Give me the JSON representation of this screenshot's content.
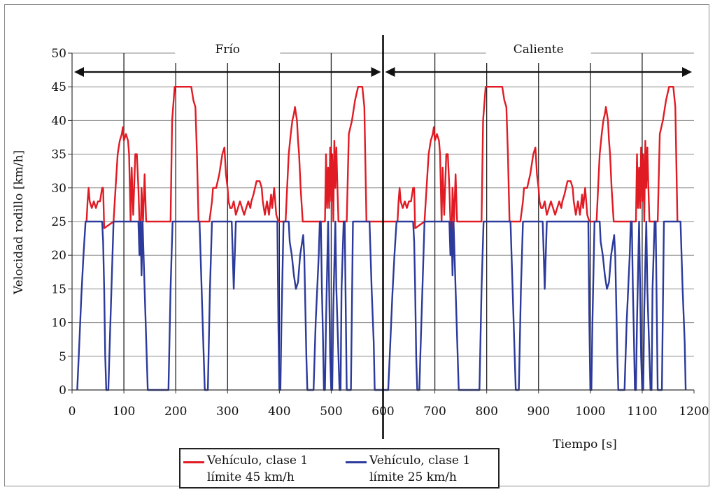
{
  "chart_data": {
    "type": "line",
    "ylabel": "Velocidad rodillo [km/h]",
    "xlabel": "Tiempo [s]",
    "xlim": [
      0,
      1200
    ],
    "ylim": [
      0,
      50
    ],
    "xticks": [
      "0",
      "100",
      "200",
      "300",
      "400",
      "500",
      "600",
      "700",
      "800",
      "900",
      "1000",
      "1100",
      "1200"
    ],
    "yticks": [
      "0",
      "5",
      "10",
      "15",
      "20",
      "25",
      "30",
      "35",
      "40",
      "45",
      "50"
    ],
    "grid": true,
    "phases": [
      {
        "label": "Frío",
        "range": [
          0,
          600
        ]
      },
      {
        "label": "Caliente",
        "range": [
          600,
          1200
        ]
      }
    ],
    "divider_x": 600,
    "legend_position": "bottom",
    "series": [
      {
        "name": "Vehículo, clase 1 límite 45 km/h",
        "name_lines": [
          "Vehículo, clase 1",
          "límite 45 km/h"
        ],
        "color": "#e01b24",
        "points": [
          [
            28,
            25
          ],
          [
            30,
            28
          ],
          [
            32,
            30
          ],
          [
            34,
            28
          ],
          [
            38,
            27
          ],
          [
            42,
            28
          ],
          [
            46,
            27
          ],
          [
            50,
            28
          ],
          [
            54,
            28
          ],
          [
            58,
            30
          ],
          [
            60,
            30
          ],
          [
            62,
            24
          ],
          [
            80,
            25
          ],
          [
            84,
            30
          ],
          [
            88,
            35
          ],
          [
            92,
            37
          ],
          [
            96,
            38
          ],
          [
            98,
            39
          ],
          [
            100,
            37
          ],
          [
            104,
            38
          ],
          [
            108,
            37
          ],
          [
            110,
            35
          ],
          [
            113,
            25
          ],
          [
            115,
            33
          ],
          [
            118,
            26
          ],
          [
            122,
            35
          ],
          [
            125,
            35
          ],
          [
            128,
            30
          ],
          [
            130,
            25
          ],
          [
            132,
            20
          ],
          [
            134,
            30
          ],
          [
            137,
            25
          ],
          [
            140,
            32
          ],
          [
            143,
            25
          ],
          [
            190,
            25
          ],
          [
            193,
            40
          ],
          [
            198,
            45
          ],
          [
            215,
            45
          ],
          [
            230,
            45
          ],
          [
            234,
            43
          ],
          [
            238,
            42
          ],
          [
            241,
            35
          ],
          [
            244,
            25
          ],
          [
            265,
            25
          ],
          [
            270,
            28
          ],
          [
            272,
            30
          ],
          [
            278,
            30
          ],
          [
            284,
            32
          ],
          [
            290,
            35
          ],
          [
            294,
            36
          ],
          [
            297,
            32
          ],
          [
            300,
            30
          ],
          [
            302,
            28
          ],
          [
            305,
            27
          ],
          [
            308,
            27
          ],
          [
            312,
            28
          ],
          [
            316,
            26
          ],
          [
            320,
            27
          ],
          [
            324,
            28
          ],
          [
            328,
            27
          ],
          [
            332,
            26
          ],
          [
            336,
            27
          ],
          [
            340,
            28
          ],
          [
            344,
            27
          ],
          [
            346,
            28
          ],
          [
            350,
            29
          ],
          [
            356,
            31
          ],
          [
            362,
            31
          ],
          [
            366,
            30
          ],
          [
            368,
            28
          ],
          [
            372,
            26
          ],
          [
            376,
            28
          ],
          [
            380,
            26
          ],
          [
            384,
            29
          ],
          [
            386,
            27
          ],
          [
            390,
            30
          ],
          [
            394,
            26
          ],
          [
            398,
            25
          ],
          [
            412,
            25
          ],
          [
            415,
            30
          ],
          [
            418,
            35
          ],
          [
            422,
            38
          ],
          [
            425,
            40
          ],
          [
            428,
            41
          ],
          [
            430,
            42
          ],
          [
            434,
            40
          ],
          [
            436,
            37
          ],
          [
            438,
            35
          ],
          [
            441,
            30
          ],
          [
            445,
            25
          ],
          [
            488,
            25
          ],
          [
            490,
            35
          ],
          [
            492,
            27
          ],
          [
            494,
            33
          ],
          [
            496,
            27
          ],
          [
            498,
            36
          ],
          [
            500,
            28
          ],
          [
            502,
            35
          ],
          [
            504,
            25
          ],
          [
            506,
            37
          ],
          [
            508,
            30
          ],
          [
            510,
            36
          ],
          [
            512,
            30
          ],
          [
            514,
            25
          ],
          [
            530,
            25
          ],
          [
            534,
            38
          ],
          [
            540,
            40
          ],
          [
            546,
            43
          ],
          [
            552,
            45
          ],
          [
            560,
            45
          ],
          [
            564,
            42
          ],
          [
            568,
            25
          ]
        ]
      },
      {
        "name": "Vehículo, clase 1 límite 25 km/h",
        "name_lines": [
          "Vehículo, clase 1",
          "límite 25 km/h"
        ],
        "color": "#2b3a9b",
        "points": [
          [
            10,
            0
          ],
          [
            14,
            7
          ],
          [
            18,
            14
          ],
          [
            22,
            20
          ],
          [
            26,
            25
          ],
          [
            58,
            25
          ],
          [
            60,
            22
          ],
          [
            62,
            15
          ],
          [
            64,
            5
          ],
          [
            66,
            0
          ],
          [
            70,
            0
          ],
          [
            72,
            5
          ],
          [
            76,
            15
          ],
          [
            80,
            25
          ],
          [
            128,
            25
          ],
          [
            130,
            20
          ],
          [
            132,
            25
          ],
          [
            134,
            17
          ],
          [
            136,
            25
          ],
          [
            140,
            15
          ],
          [
            144,
            5
          ],
          [
            146,
            0
          ],
          [
            186,
            0
          ],
          [
            190,
            15
          ],
          [
            194,
            25
          ],
          [
            246,
            25
          ],
          [
            250,
            15
          ],
          [
            254,
            5
          ],
          [
            256,
            0
          ],
          [
            262,
            0
          ],
          [
            266,
            15
          ],
          [
            270,
            25
          ],
          [
            308,
            25
          ],
          [
            310,
            20
          ],
          [
            312,
            15
          ],
          [
            316,
            25
          ],
          [
            396,
            25
          ],
          [
            398,
            10
          ],
          [
            400,
            0
          ],
          [
            402,
            0
          ],
          [
            404,
            10
          ],
          [
            408,
            25
          ],
          [
            418,
            25
          ],
          [
            420,
            22
          ],
          [
            424,
            20
          ],
          [
            428,
            17
          ],
          [
            432,
            15
          ],
          [
            436,
            16
          ],
          [
            440,
            20
          ],
          [
            444,
            22
          ],
          [
            446,
            23
          ],
          [
            448,
            20
          ],
          [
            452,
            5
          ],
          [
            454,
            0
          ],
          [
            466,
            0
          ],
          [
            470,
            10
          ],
          [
            476,
            20
          ],
          [
            478,
            25
          ],
          [
            480,
            25
          ],
          [
            482,
            15
          ],
          [
            484,
            8
          ],
          [
            486,
            0
          ],
          [
            488,
            0
          ],
          [
            490,
            10
          ],
          [
            494,
            25
          ],
          [
            496,
            15
          ],
          [
            498,
            5
          ],
          [
            500,
            0
          ],
          [
            502,
            0
          ],
          [
            504,
            12
          ],
          [
            508,
            25
          ],
          [
            510,
            15
          ],
          [
            514,
            5
          ],
          [
            516,
            0
          ],
          [
            518,
            0
          ],
          [
            520,
            15
          ],
          [
            524,
            25
          ],
          [
            526,
            25
          ],
          [
            530,
            0
          ],
          [
            538,
            0
          ],
          [
            542,
            25
          ],
          [
            574,
            25
          ],
          [
            578,
            15
          ],
          [
            582,
            7
          ],
          [
            584,
            0
          ]
        ]
      }
    ]
  }
}
